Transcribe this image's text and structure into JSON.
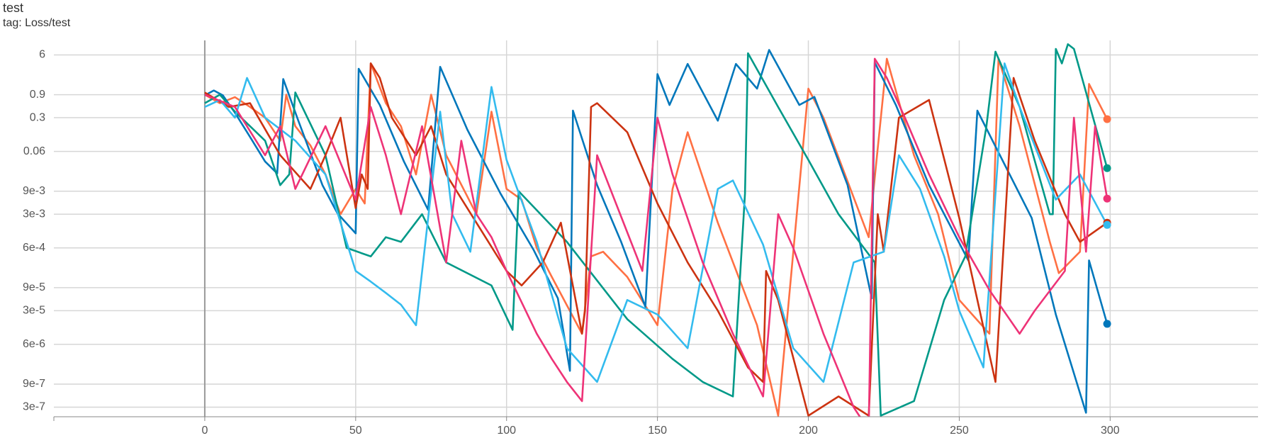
{
  "chart_data": {
    "type": "line",
    "title": "test",
    "subtitle": "tag: Loss/test",
    "yscale": "log",
    "grid": true,
    "xlim": [
      -50,
      349
    ],
    "ylim": [
      1.9e-07,
      12
    ],
    "xticks": [
      0,
      50,
      100,
      150,
      200,
      250,
      300
    ],
    "yticks": [
      {
        "value": 3e-07,
        "label": "3e-7"
      },
      {
        "value": 9e-07,
        "label": "9e-7"
      },
      {
        "value": 6e-06,
        "label": "6e-6"
      },
      {
        "value": 3e-05,
        "label": "3e-5"
      },
      {
        "value": 9e-05,
        "label": "9e-5"
      },
      {
        "value": 0.0006,
        "label": "6e-4"
      },
      {
        "value": 0.003,
        "label": "3e-3"
      },
      {
        "value": 0.009,
        "label": "9e-3"
      },
      0.06,
      0.3,
      0.9,
      6
    ],
    "series": [
      {
        "color": "#ff7043",
        "x": [
          0,
          5,
          10,
          15,
          20,
          25,
          27,
          30,
          35,
          40,
          45,
          50,
          53,
          55,
          60,
          65,
          70,
          75,
          80,
          90,
          95,
          100,
          105,
          110,
          115,
          125,
          128,
          132,
          140,
          150,
          155,
          160,
          170,
          183,
          190,
          200,
          205,
          220,
          226,
          235,
          243,
          250,
          260,
          263,
          270,
          280,
          283,
          290,
          293,
          299
        ],
        "values": [
          0.9,
          0.6,
          0.8,
          0.5,
          0.3,
          0.1,
          0.9,
          0.2,
          0.08,
          0.02,
          0.003,
          0.01,
          0.005,
          4,
          0.6,
          0.2,
          0.02,
          0.9,
          0.05,
          0.003,
          0.4,
          0.01,
          0.006,
          0.0006,
          0.00015,
          1e-05,
          0.0004,
          0.0005,
          0.00015,
          1.5e-05,
          0.01,
          0.15,
          0.002,
          1.5e-05,
          2e-07,
          1.2,
          0.3,
          0.001,
          5,
          0.05,
          0.003,
          5e-05,
          1e-05,
          5,
          0.2,
          0.0008,
          0.00018,
          0.0005,
          1.5,
          0.28
        ]
      },
      {
        "color": "#0077bb",
        "x": [
          0,
          3,
          6,
          10,
          15,
          20,
          24,
          26,
          31,
          39,
          44,
          50,
          51,
          58,
          66,
          74,
          78,
          87,
          98,
          109,
          117,
          121,
          122,
          130,
          138,
          146,
          150,
          154,
          160,
          170,
          176,
          183,
          187,
          197,
          202,
          213,
          221,
          222,
          229,
          240,
          253,
          256,
          274,
          282,
          292,
          293,
          299
        ],
        "values": [
          0.87,
          1.1,
          0.87,
          0.38,
          0.12,
          0.037,
          0.021,
          1.9,
          0.26,
          0.012,
          0.0031,
          0.0012,
          3.1,
          0.55,
          0.037,
          0.0037,
          3.4,
          0.17,
          0.008,
          0.00054,
          5.4e-05,
          1.7e-06,
          0.42,
          0.012,
          0.00079,
          3.6e-05,
          2.4,
          0.55,
          3.9,
          0.26,
          3.9,
          1.2,
          7.6,
          0.55,
          0.81,
          0.012,
          5.4e-05,
          4.2,
          0.55,
          0.012,
          0.00033,
          0.42,
          0.0025,
          2.5e-05,
          2.3e-07,
          0.00033,
          1.6e-05
        ]
      },
      {
        "color": "#009988",
        "x": [
          0,
          5,
          10,
          20,
          25,
          28,
          30,
          40,
          47,
          55,
          60,
          65,
          72,
          80,
          95,
          102,
          104,
          120,
          140,
          155,
          165,
          175,
          179,
          180,
          190,
          200,
          210,
          222,
          224,
          235,
          245,
          252,
          259,
          262,
          270,
          280,
          281,
          282,
          284,
          286,
          288,
          299
        ],
        "values": [
          0.6,
          0.9,
          0.4,
          0.1,
          0.012,
          0.02,
          1.0,
          0.05,
          0.0006,
          0.0004,
          0.001,
          0.0008,
          0.003,
          0.0003,
          0.0001,
          1.2e-05,
          0.009,
          0.0008,
          2e-05,
          3e-06,
          1e-06,
          5e-07,
          0.008,
          6.5,
          0.5,
          0.04,
          0.003,
          0.0003,
          2e-07,
          4e-07,
          5e-05,
          0.0004,
          0.2,
          7,
          0.5,
          0.003,
          0.003,
          8,
          4,
          10,
          8,
          0.027
        ]
      },
      {
        "color": "#cc3311",
        "x": [
          0,
          8,
          15,
          25,
          35,
          40,
          45,
          50,
          52,
          54,
          55,
          58,
          62,
          70,
          75,
          80,
          90,
          100,
          105,
          112,
          118,
          125,
          126,
          128,
          130,
          140,
          150,
          160,
          170,
          180,
          185,
          186,
          190,
          200,
          210,
          220,
          223,
          225,
          230,
          240,
          250,
          262,
          268,
          275,
          285,
          290,
          299
        ],
        "values": [
          1.0,
          0.5,
          0.6,
          0.05,
          0.01,
          0.05,
          0.3,
          0.004,
          0.02,
          0.01,
          4,
          2,
          0.3,
          0.05,
          0.2,
          0.02,
          0.002,
          0.0002,
          0.0001,
          0.0003,
          0.002,
          1e-05,
          3e-05,
          0.5,
          0.6,
          0.15,
          0.005,
          0.0003,
          3e-05,
          2e-06,
          1e-06,
          0.0002,
          5e-05,
          2e-07,
          5e-07,
          2e-07,
          0.003,
          0.0005,
          0.3,
          0.7,
          0.0025,
          1e-06,
          2,
          0.1,
          0.003,
          0.0008,
          0.002
        ]
      },
      {
        "color": "#33bbee",
        "x": [
          0,
          5,
          10,
          14,
          20,
          30,
          40,
          50,
          55,
          60,
          65,
          70,
          78,
          82,
          88,
          95,
          100,
          110,
          120,
          130,
          140,
          150,
          160,
          170,
          175,
          185,
          195,
          205,
          215,
          225,
          230,
          237,
          245,
          250,
          258,
          265,
          270,
          282,
          290,
          299
        ],
        "values": [
          0.5,
          0.7,
          0.3,
          2,
          0.3,
          0.1,
          0.02,
          0.0002,
          0.00012,
          7e-05,
          4e-05,
          1.5e-05,
          0.4,
          0.003,
          0.0005,
          1.3,
          0.04,
          0.0008,
          5e-06,
          1e-06,
          5e-05,
          2.5e-05,
          5e-06,
          0.01,
          0.015,
          0.0007,
          5e-06,
          1e-06,
          0.0003,
          0.0005,
          0.05,
          0.01,
          0.0004,
          3e-05,
          2e-06,
          4,
          0.5,
          0.006,
          0.02,
          0.0018
        ]
      },
      {
        "color": "#ee3377",
        "x": [
          0,
          10,
          20,
          25,
          30,
          40,
          50,
          55,
          60,
          65,
          72,
          80,
          85,
          90,
          95,
          100,
          110,
          115,
          120,
          125,
          130,
          145,
          150,
          155,
          165,
          175,
          185,
          190,
          195,
          205,
          215,
          220,
          222,
          226,
          232,
          240,
          250,
          260,
          270,
          275,
          285,
          288,
          292,
          295,
          299
        ],
        "values": [
          0.9,
          0.5,
          0.05,
          0.2,
          0.01,
          0.2,
          0.006,
          0.5,
          0.05,
          0.003,
          0.2,
          0.0003,
          0.1,
          0.003,
          0.001,
          0.0002,
          1e-05,
          3e-06,
          1e-06,
          4e-07,
          0.05,
          0.0002,
          0.3,
          0.02,
          0.0003,
          1e-05,
          5e-07,
          0.003,
          0.0006,
          1e-05,
          3e-07,
          1e-07,
          5,
          2,
          0.3,
          0.02,
          0.001,
          8e-05,
          1e-05,
          3e-05,
          0.0002,
          0.3,
          0.0005,
          0.2,
          0.0063
        ]
      }
    ]
  }
}
